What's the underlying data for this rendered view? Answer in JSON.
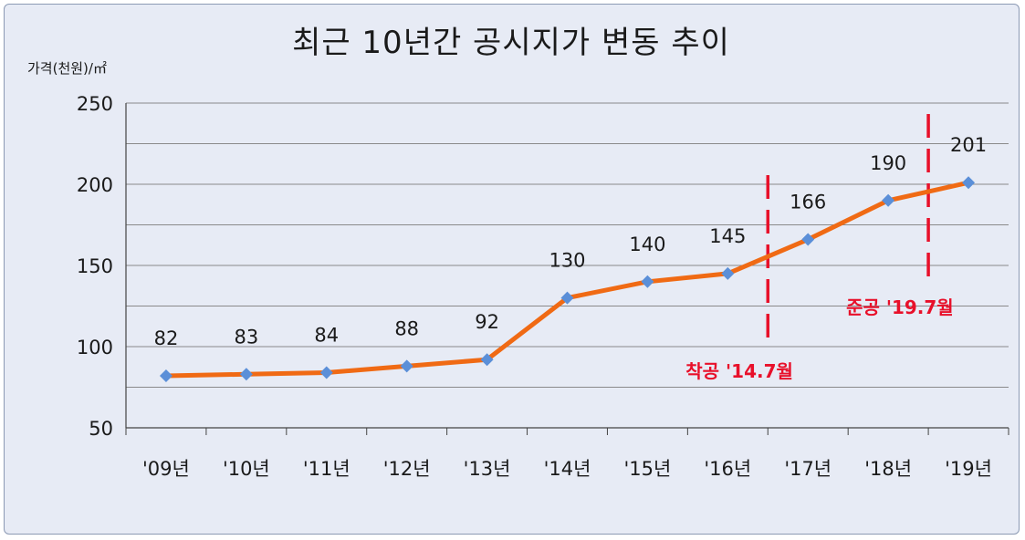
{
  "chart_data": {
    "type": "line",
    "title": "최근 10년간 공시지가 변동 추이",
    "ylabel": "가격(천원)/㎡",
    "xlabel": "",
    "categories": [
      "'09년",
      "'10년",
      "'11년",
      "'12년",
      "'13년",
      "'14년",
      "'15년",
      "'16년",
      "'17년",
      "'18년",
      "'19년"
    ],
    "series": [
      {
        "values": [
          82,
          83,
          84,
          88,
          92,
          130,
          140,
          145,
          166,
          190,
          201
        ]
      }
    ],
    "data_labels": [
      "82",
      "83",
      "84",
      "88",
      "92",
      "130",
      "140",
      "145",
      "166",
      "190",
      "201"
    ],
    "yticks": [
      "250",
      "200",
      "150",
      "100",
      "50"
    ],
    "ylim": [
      50,
      250
    ],
    "grid": true,
    "legend": "none",
    "colors": {
      "line": "#f06a14",
      "marker": "#5b8fd8",
      "annotation": "#e8102a",
      "background": "#e7ebf5",
      "grid": "#8a8a8a"
    },
    "annotations": [
      {
        "label": "착공 '14.7월",
        "after_category_index": 7
      },
      {
        "label": "준공 '19.7월",
        "after_category_index": 9
      }
    ]
  }
}
